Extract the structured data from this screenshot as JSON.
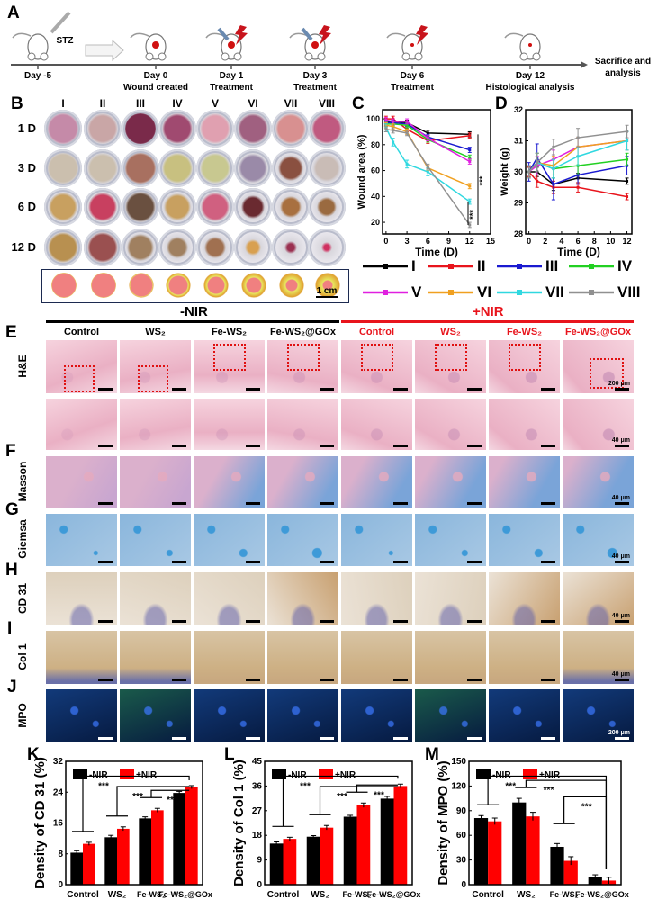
{
  "panel_labels": {
    "A": "A",
    "B": "B",
    "C": "C",
    "D": "D",
    "E": "E",
    "F": "F",
    "G": "G",
    "H": "H",
    "I": "I",
    "J": "J",
    "K": "K",
    "L": "L",
    "M": "M"
  },
  "timeline": {
    "stz_label": "STZ",
    "end_label_line1": "Sacrifice and",
    "end_label_line2": "analysis",
    "events": [
      {
        "day": "Day -5",
        "note": ""
      },
      {
        "day": "Day 0",
        "note": "Wound created"
      },
      {
        "day": "Day 1",
        "note": "Treatment"
      },
      {
        "day": "Day 3",
        "note": "Treatment"
      },
      {
        "day": "Day 6",
        "note": "Treatment"
      },
      {
        "day": "Day 12",
        "note": "Histological analysis"
      }
    ]
  },
  "wound_photos": {
    "groups": [
      "I",
      "II",
      "III",
      "IV",
      "V",
      "VI",
      "VII",
      "VIII"
    ],
    "days": [
      "1 D",
      "3 D",
      "6 D",
      "12 D"
    ],
    "scale_bar_label": "1 cm"
  },
  "legend": {
    "series": [
      {
        "name": "I",
        "color": "#000000"
      },
      {
        "name": "II",
        "color": "#e8141c"
      },
      {
        "name": "III",
        "color": "#1a1ad0"
      },
      {
        "name": "IV",
        "color": "#22d022"
      },
      {
        "name": "V",
        "color": "#e020e0"
      },
      {
        "name": "VI",
        "color": "#f0a020"
      },
      {
        "name": "VII",
        "color": "#30d8e0"
      },
      {
        "name": "VIII",
        "color": "#909090"
      }
    ]
  },
  "histology": {
    "minus_nir": "-NIR",
    "plus_nir": "+NIR",
    "minus_color": "#000000",
    "plus_color": "#e8141c",
    "columns": [
      "Control",
      "WS₂",
      "Fe-WS₂",
      "Fe-WS₂@GOx",
      "Control",
      "WS₂",
      "Fe-WS₂",
      "Fe-WS₂@GOx"
    ],
    "rows": [
      {
        "label": "H&E",
        "stain": "he",
        "scale_label": "200 μm"
      },
      {
        "label": "",
        "stain": "he2",
        "scale_label": "40 μm"
      },
      {
        "label": "Masson",
        "stain": "masson",
        "scale_label": "40 μm"
      },
      {
        "label": "Giemsa",
        "stain": "giemsa",
        "scale_label": "40 μm"
      },
      {
        "label": "CD 31",
        "stain": "cd31",
        "scale_label": "40 μm"
      },
      {
        "label": "Col 1",
        "stain": "col1",
        "scale_label": "40 μm"
      },
      {
        "label": "MPO",
        "stain": "mpo",
        "scale_label": "200 μm"
      }
    ]
  },
  "chart_data": [
    {
      "id": "C",
      "type": "line",
      "xlabel": "Time (D)",
      "ylabel": "Wound area (%)",
      "xlim": [
        -0.5,
        15
      ],
      "ylim": [
        11,
        107
      ],
      "xticks": [
        0,
        3,
        6,
        9,
        12,
        15
      ],
      "yticks": [
        20,
        40,
        60,
        80,
        100
      ],
      "x": [
        0,
        1,
        3,
        6,
        12
      ],
      "series": [
        {
          "name": "I",
          "color": "#000000",
          "values": [
            98,
            98,
            97,
            89,
            88
          ],
          "yerr": [
            2,
            2,
            2,
            2,
            2
          ]
        },
        {
          "name": "II",
          "color": "#e8141c",
          "values": [
            100,
            100,
            92,
            83,
            87
          ],
          "yerr": [
            2,
            2,
            2,
            2,
            2
          ]
        },
        {
          "name": "III",
          "color": "#1a1ad0",
          "values": [
            97,
            97,
            96,
            86,
            76
          ],
          "yerr": [
            2,
            2,
            2,
            2,
            2
          ]
        },
        {
          "name": "IV",
          "color": "#22d022",
          "values": [
            96,
            96,
            95,
            84,
            70
          ],
          "yerr": [
            2,
            2,
            2,
            2,
            2
          ]
        },
        {
          "name": "V",
          "color": "#e020e0",
          "values": [
            99,
            98,
            98,
            85,
            67
          ],
          "yerr": [
            2,
            2,
            2,
            2,
            2
          ]
        },
        {
          "name": "VI",
          "color": "#f0a020",
          "values": [
            95,
            94,
            90,
            62,
            48
          ],
          "yerr": [
            2,
            2,
            2,
            2,
            2
          ]
        },
        {
          "name": "VII",
          "color": "#30d8e0",
          "values": [
            93,
            82,
            65,
            59,
            36
          ],
          "yerr": [
            3,
            3,
            3,
            3,
            2
          ]
        },
        {
          "name": "VIII",
          "color": "#909090",
          "values": [
            92,
            91,
            89,
            63,
            18
          ],
          "yerr": [
            2,
            2,
            2,
            2,
            2
          ]
        }
      ],
      "significance": [
        "***",
        "***"
      ]
    },
    {
      "id": "D",
      "type": "line",
      "xlabel": "Time (D)",
      "ylabel": "Weight (g)",
      "xlim": [
        -0.4,
        12.6
      ],
      "ylim": [
        28,
        32
      ],
      "xticks": [
        0,
        2,
        4,
        6,
        8,
        10,
        12
      ],
      "yticks": [
        28,
        29,
        30,
        31,
        32
      ],
      "x": [
        0,
        1,
        3,
        6,
        12
      ],
      "series": [
        {
          "name": "I",
          "color": "#000000",
          "values": [
            30,
            30,
            29.6,
            29.8,
            29.7
          ],
          "yerr": [
            0.15,
            0.15,
            0.2,
            0.15,
            0.1
          ]
        },
        {
          "name": "II",
          "color": "#e8141c",
          "values": [
            30,
            29.7,
            29.5,
            29.5,
            29.2
          ],
          "yerr": [
            0.15,
            0.2,
            0.2,
            0.15,
            0.1
          ]
        },
        {
          "name": "III",
          "color": "#1a1ad0",
          "values": [
            30,
            30.45,
            29.6,
            29.9,
            30.2
          ],
          "yerr": [
            0.3,
            0.45,
            0.5,
            0.3,
            0.3
          ]
        },
        {
          "name": "IV",
          "color": "#22d022",
          "values": [
            30,
            30.3,
            30.1,
            30.2,
            30.4
          ],
          "yerr": [
            0.2,
            0.3,
            0.3,
            0.3,
            0.2
          ]
        },
        {
          "name": "V",
          "color": "#e020e0",
          "values": [
            30,
            30.2,
            30.4,
            30.8,
            31.0
          ],
          "yerr": [
            0.2,
            0.3,
            0.3,
            0.3,
            0.3
          ]
        },
        {
          "name": "VI",
          "color": "#f0a020",
          "values": [
            30,
            30.3,
            30.2,
            30.8,
            31.0
          ],
          "yerr": [
            0.2,
            0.3,
            0.3,
            0.3,
            0.3
          ]
        },
        {
          "name": "VII",
          "color": "#30d8e0",
          "values": [
            30,
            30.3,
            30.1,
            30.5,
            31.0
          ],
          "yerr": [
            0.2,
            0.3,
            0.3,
            0.3,
            0.3
          ]
        },
        {
          "name": "VIII",
          "color": "#909090",
          "values": [
            30,
            30.3,
            30.8,
            31.1,
            31.3
          ],
          "yerr": [
            0.2,
            0.3,
            0.25,
            0.3,
            0.2
          ]
        }
      ]
    },
    {
      "id": "K",
      "type": "bar",
      "ylabel": "Density of CD 31 (%)",
      "categories": [
        "Control",
        "WS₂",
        "Fe-WS₂",
        "Fe-WS₂@GOx"
      ],
      "ylim": [
        0,
        32
      ],
      "yticks": [
        0,
        8,
        16,
        24,
        32
      ],
      "series": [
        {
          "name": "-NIR",
          "color": "#000000",
          "values": [
            8.3,
            12.3,
            17.2,
            23.8
          ],
          "yerr": [
            0.5,
            0.5,
            0.4,
            0.4
          ]
        },
        {
          "name": "+NIR",
          "color": "#ff0000",
          "values": [
            10.6,
            14.5,
            19.3,
            25.3
          ],
          "yerr": [
            0.4,
            0.5,
            0.5,
            0.4
          ]
        }
      ],
      "comparisons": [
        {
          "from": 0,
          "to": 3,
          "label": "***"
        },
        {
          "from": 1,
          "to": 3,
          "label": "***"
        },
        {
          "from": 2,
          "to": 3,
          "label": "***"
        }
      ]
    },
    {
      "id": "L",
      "type": "bar",
      "ylabel": "Density of Col 1 (%)",
      "categories": [
        "Control",
        "WS₂",
        "Fe-WS₂",
        "Fe-WS₂@GOx"
      ],
      "ylim": [
        0,
        45
      ],
      "yticks": [
        0,
        9,
        18,
        27,
        36,
        45
      ],
      "series": [
        {
          "name": "-NIR",
          "color": "#000000",
          "values": [
            15,
            17.5,
            24.8,
            31.4
          ],
          "yerr": [
            0.6,
            0.4,
            0.5,
            0.8
          ]
        },
        {
          "name": "+NIR",
          "color": "#ff0000",
          "values": [
            16.7,
            20.8,
            29,
            36
          ],
          "yerr": [
            0.6,
            0.8,
            0.8,
            0.7
          ]
        }
      ],
      "comparisons": [
        {
          "from": 0,
          "to": 3,
          "label": "***"
        },
        {
          "from": 1,
          "to": 3,
          "label": "***"
        },
        {
          "from": 2,
          "to": 3,
          "label": "***"
        }
      ]
    },
    {
      "id": "M",
      "type": "bar",
      "ylabel": "Density of MPO (%)",
      "categories": [
        "Control",
        "WS₂",
        "Fe-WS₂",
        "Fe-WS₂@GOx"
      ],
      "ylim": [
        0,
        150
      ],
      "yticks": [
        0,
        30,
        60,
        90,
        120,
        150
      ],
      "series": [
        {
          "name": "-NIR",
          "color": "#000000",
          "values": [
            81,
            100,
            46,
            9
          ],
          "yerr": [
            3,
            5,
            4,
            3
          ]
        },
        {
          "name": "+NIR",
          "color": "#ff0000",
          "values": [
            77,
            83,
            29,
            5
          ],
          "yerr": [
            4,
            5,
            5,
            4
          ]
        }
      ],
      "comparisons": [
        {
          "from": 0,
          "to": 3,
          "label": "***"
        },
        {
          "from": 1,
          "to": 3,
          "label": "***"
        },
        {
          "from": 2,
          "to": 3,
          "label": "***"
        }
      ]
    }
  ]
}
